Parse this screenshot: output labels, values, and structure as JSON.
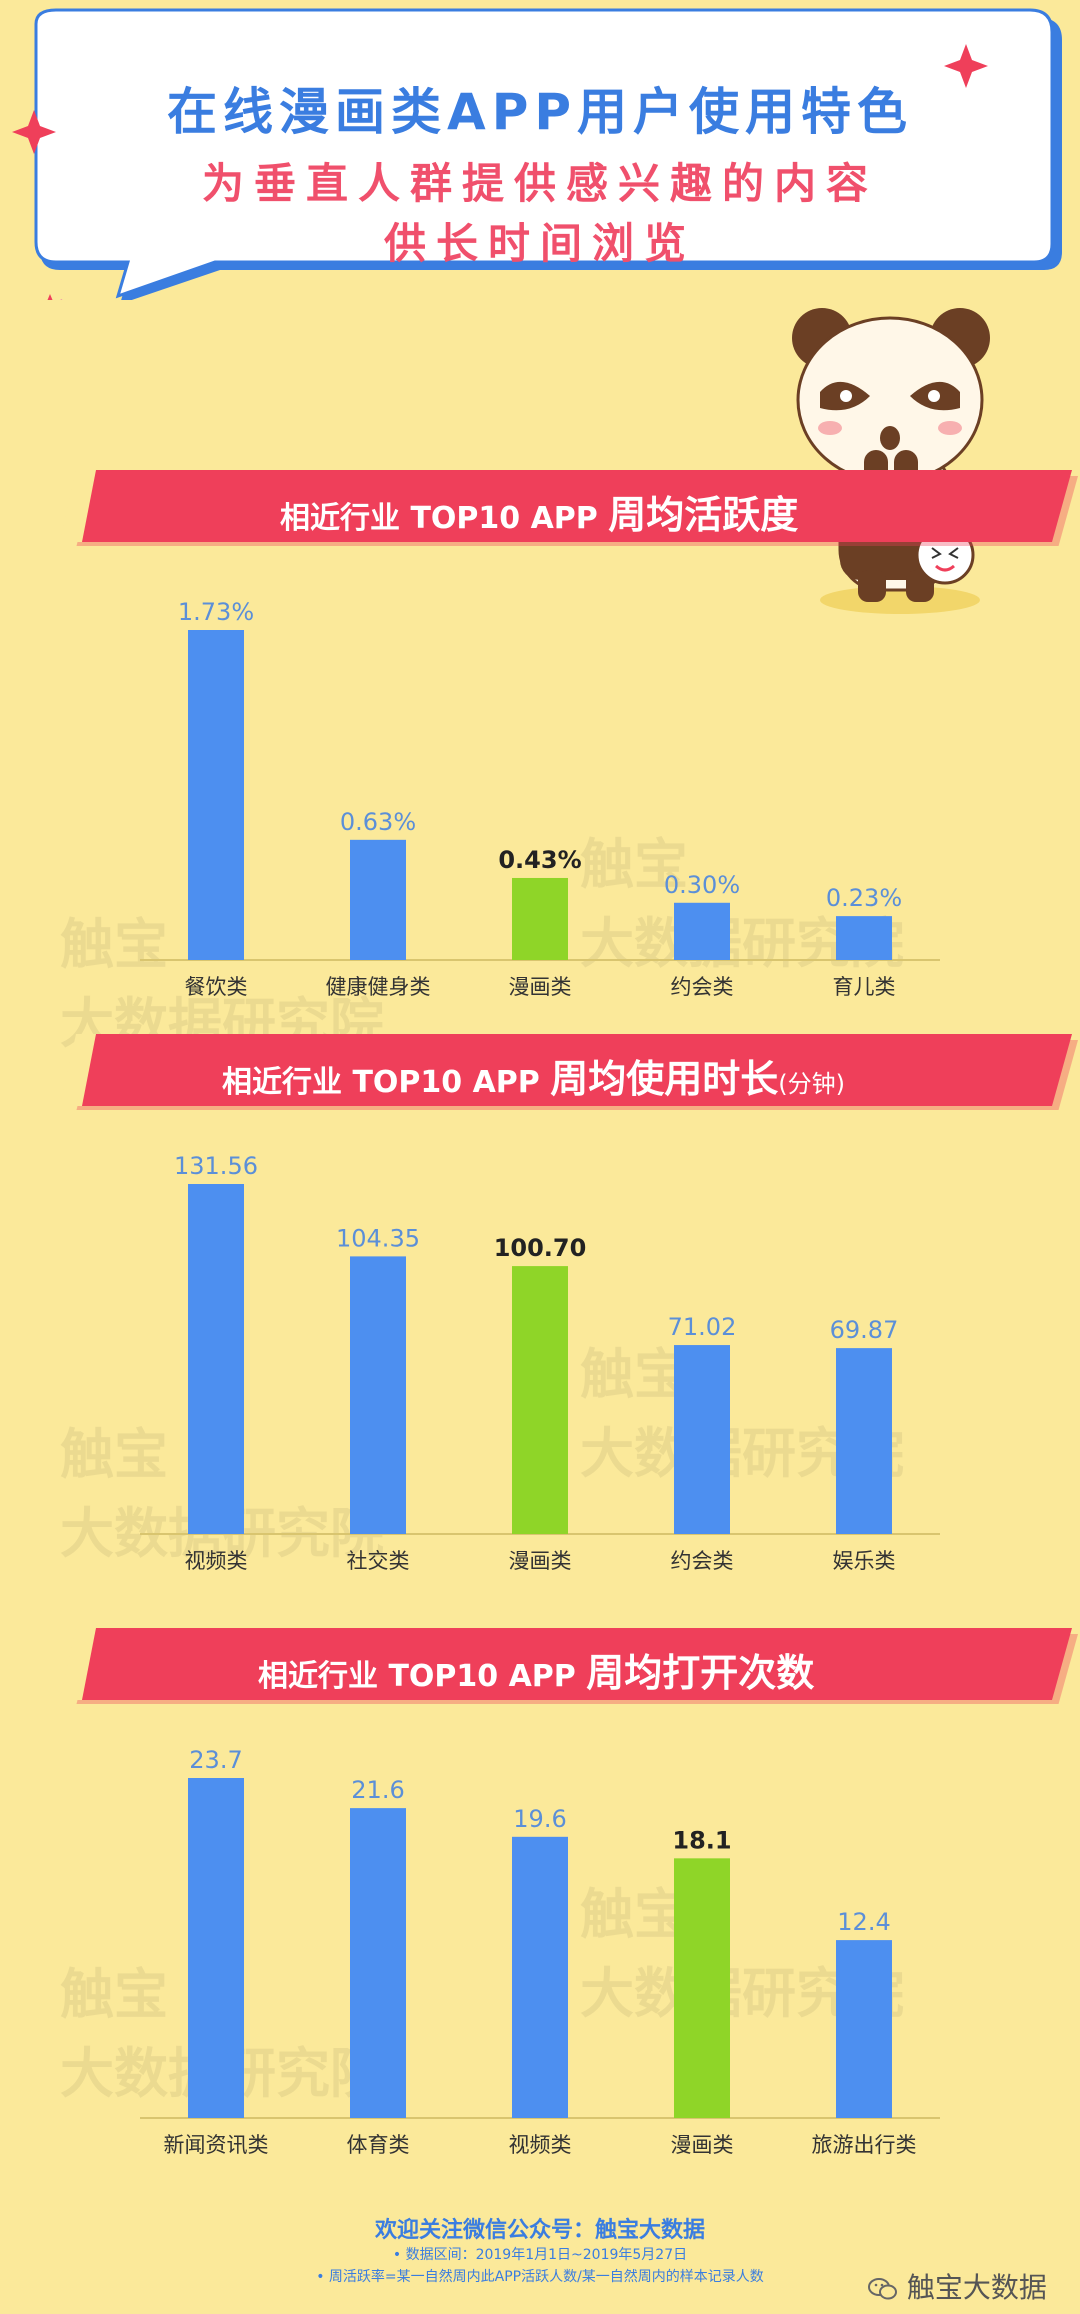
{
  "header": {
    "title": "在线漫画类APP用户使用特色",
    "subtitle_line1": "为垂直人群提供感兴趣的内容",
    "subtitle_line2": "供长时间浏览"
  },
  "colors": {
    "background": "#fbe99a",
    "bar_blue": "#4d8ff0",
    "bar_highlight": "#8fd528",
    "banner_red": "#ef3f5a",
    "title_blue": "#3a7de0",
    "subtitle_red": "#f0506c"
  },
  "watermark": {
    "line1": "触宝",
    "line2": "大数据研究院"
  },
  "chart_data": [
    {
      "type": "bar",
      "banner_prefix": "相近行业 TOP10 APP",
      "banner_bold": "周均活跃度",
      "banner_unit": "",
      "categories": [
        "餐饮类",
        "健康健身类",
        "漫画类",
        "约会类",
        "育儿类"
      ],
      "values": [
        1.73,
        0.63,
        0.43,
        0.3,
        0.23
      ],
      "labels": [
        "1.73%",
        "0.63%",
        "0.43%",
        "0.30%",
        "0.23%"
      ],
      "highlight_index": 2,
      "ylim": [
        0,
        1.73
      ]
    },
    {
      "type": "bar",
      "banner_prefix": "相近行业 TOP10 APP",
      "banner_bold": "周均使用时长",
      "banner_unit": "(分钟)",
      "categories": [
        "视频类",
        "社交类",
        "漫画类",
        "约会类",
        "娱乐类"
      ],
      "values": [
        131.56,
        104.35,
        100.7,
        71.02,
        69.87
      ],
      "labels": [
        "131.56",
        "104.35",
        "100.70",
        "71.02",
        "69.87"
      ],
      "highlight_index": 2,
      "ylim": [
        0,
        131.56
      ]
    },
    {
      "type": "bar",
      "banner_prefix": "相近行业 TOP10 APP",
      "banner_bold": "周均打开次数",
      "banner_unit": "",
      "categories": [
        "新闻资讯类",
        "体育类",
        "视频类",
        "漫画类",
        "旅游出行类"
      ],
      "values": [
        23.7,
        21.6,
        19.6,
        18.1,
        12.4
      ],
      "labels": [
        "23.7",
        "21.6",
        "19.6",
        "18.1",
        "12.4"
      ],
      "highlight_index": 3,
      "ylim": [
        0,
        23.7
      ]
    }
  ],
  "footer": {
    "follow": "欢迎关注微信公众号：触宝大数据",
    "note1": "• 数据区间：2019年1月1日~2019年5月27日",
    "note2": "• 周活跃率=某一自然周内此APP活跃人数/某一自然周内的样本记录人数",
    "wechat_label": "触宝大数据"
  }
}
